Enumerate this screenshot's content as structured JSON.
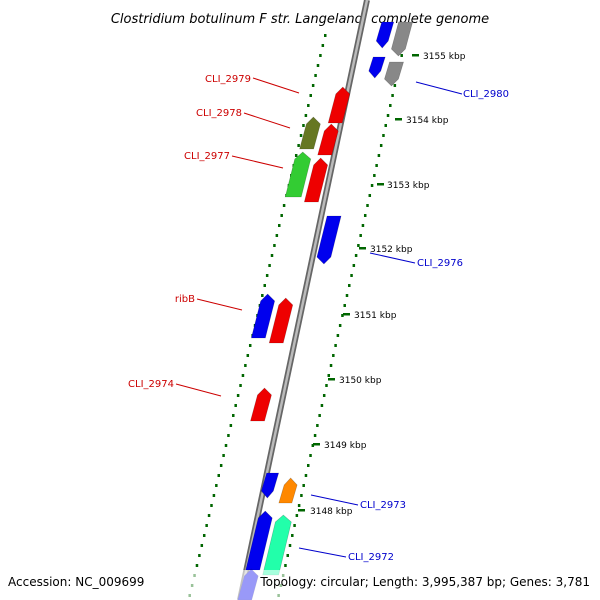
{
  "title": "Clostridium botulinum F str. Langeland, complete genome",
  "footer": {
    "accession": "Accession: NC_009699",
    "topology": "Topology: circular; Length: 3,995,387 bp; Genes: 3,781"
  },
  "ticks": [
    {
      "label": "3155 kbp",
      "kbp": 3155
    },
    {
      "label": "3154 kbp",
      "kbp": 3154
    },
    {
      "label": "3153 kbp",
      "kbp": 3153
    },
    {
      "label": "3152 kbp",
      "kbp": 3152
    },
    {
      "label": "3151 kbp",
      "kbp": 3151
    },
    {
      "label": "3150 kbp",
      "kbp": 3150
    },
    {
      "label": "3149 kbp",
      "kbp": 3149
    },
    {
      "label": "3148 kbp",
      "kbp": 3148
    }
  ],
  "gene_labels": [
    {
      "name": "CLI_2980",
      "strand": "plus"
    },
    {
      "name": "CLI_2979",
      "strand": "minus"
    },
    {
      "name": "CLI_2978",
      "strand": "minus"
    },
    {
      "name": "CLI_2977",
      "strand": "minus"
    },
    {
      "name": "CLI_2976",
      "strand": "plus"
    },
    {
      "name": "ribB",
      "strand": "minus"
    },
    {
      "name": "CLI_2974",
      "strand": "minus"
    },
    {
      "name": "CLI_2973",
      "strand": "plus"
    },
    {
      "name": "CLI_2972",
      "strand": "plus"
    }
  ],
  "colors": {
    "cds_forward": "#0000ee",
    "cds_reverse": "#ee0000",
    "cds_olive": "#667722",
    "cds_green": "#33cc33",
    "cds_orange": "#ff8800",
    "cds_aqua": "#22ffaa",
    "cds_gray": "#888888",
    "backbone": "#888888",
    "ticks": "#006600",
    "label_minus": "#cc0000",
    "label_plus": "#0000cc"
  }
}
